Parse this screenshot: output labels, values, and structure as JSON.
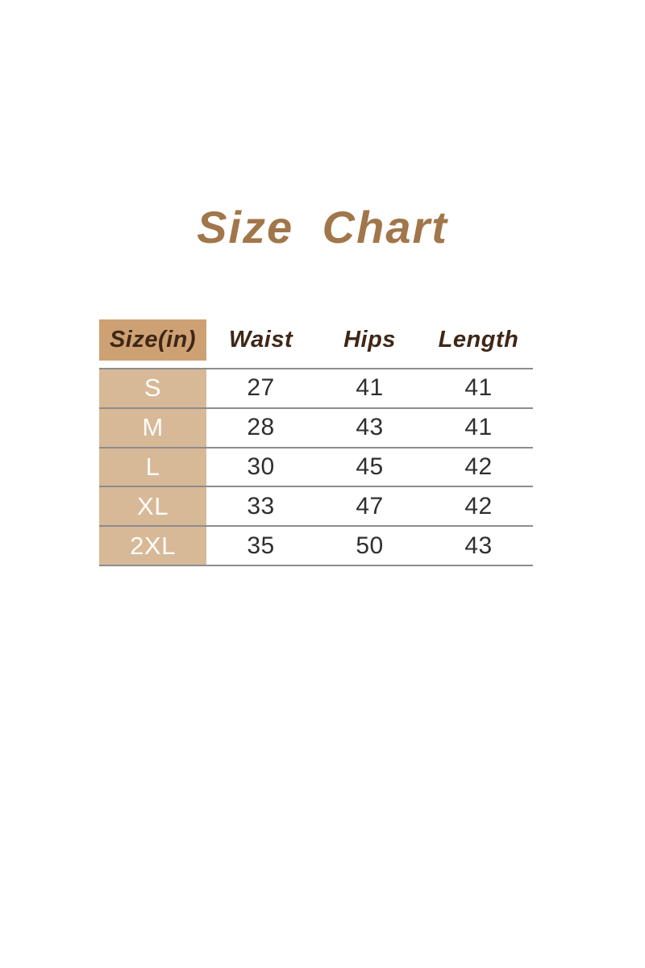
{
  "page": {
    "title": "Size Chart",
    "background": "#ffffff"
  },
  "colors": {
    "title_text": "#a1764a",
    "header_text": "#3f2717",
    "header_cell_bg": "#cda173",
    "size_cell_bg": "#d7b998",
    "size_cell_text": "#fdfcf8",
    "value_text": "#2f2f2f",
    "divider": "#8c8c8c",
    "page_bg": "#ffffff"
  },
  "table": {
    "headers": [
      "Size(in)",
      "Waist",
      "Hips",
      "Length"
    ],
    "rows": [
      {
        "size": "S",
        "waist": "27",
        "hips": "41",
        "length": "41"
      },
      {
        "size": "M",
        "waist": "28",
        "hips": "43",
        "length": "41"
      },
      {
        "size": "L",
        "waist": "30",
        "hips": "45",
        "length": "42"
      },
      {
        "size": "XL",
        "waist": "33",
        "hips": "47",
        "length": "42"
      },
      {
        "size": "2XL",
        "waist": "35",
        "hips": "50",
        "length": "43"
      }
    ]
  },
  "chart_data": {
    "type": "table",
    "title": "Size Chart",
    "columns": [
      "Size(in)",
      "Waist",
      "Hips",
      "Length"
    ],
    "rows": [
      [
        "S",
        27,
        41,
        41
      ],
      [
        "M",
        28,
        43,
        41
      ],
      [
        "L",
        30,
        45,
        42
      ],
      [
        "XL",
        33,
        47,
        42
      ],
      [
        "2XL",
        35,
        50,
        43
      ]
    ]
  }
}
